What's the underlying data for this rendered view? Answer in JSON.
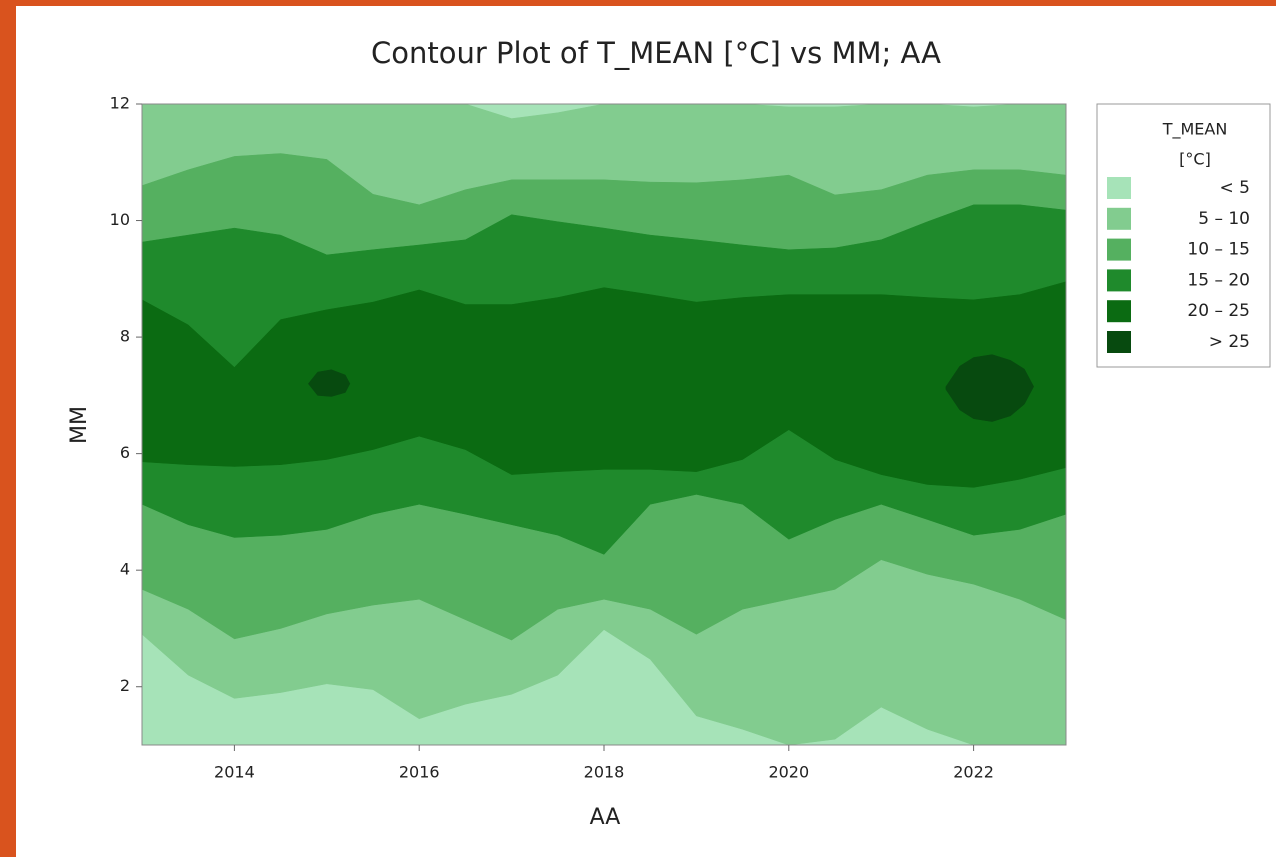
{
  "chart_data": {
    "type": "contour",
    "title": "Contour Plot of T_MEAN [°C] vs MM; AA",
    "x_label": "AA",
    "y_label": "MM",
    "xlim": [
      2013,
      2023
    ],
    "xticks": [
      2014,
      2016,
      2018,
      2020,
      2022
    ],
    "ylim": [
      1,
      12
    ],
    "yticks": [
      2,
      4,
      6,
      8,
      10,
      12
    ],
    "legend_title": [
      "T_MEAN",
      "[°C]"
    ],
    "series": [
      {
        "name": "< 5",
        "color": "#a6e3b8",
        "regions": [
          {
            "x": [
              2013,
              2023
            ],
            "lower": [
              1,
              1
            ],
            "upper": [
              12,
              12
            ]
          }
        ]
      },
      {
        "name": "5 – 10",
        "color": "#82cc8f",
        "regions": [
          {
            "x": [
              2013,
              2013.5,
              2014,
              2014.5,
              2015,
              2015.5,
              2016,
              2016.5,
              2017,
              2017.5,
              2018,
              2018.5,
              2019,
              2019.5,
              2020,
              2020.5,
              2021,
              2021.5,
              2022,
              2022.5,
              2023
            ],
            "lower": [
              2.9,
              2.2,
              1.8,
              1.9,
              2.05,
              1.95,
              1.45,
              1.7,
              1.87,
              2.2,
              2.98,
              2.47,
              1.5,
              1.27,
              1,
              1.1,
              1.65,
              1.27,
              1,
              1,
              1
            ],
            "upper": [
              12,
              12,
              12,
              12,
              12,
              12,
              12,
              12,
              11.75,
              11.85,
              12,
              12,
              12,
              12,
              11.95,
              11.95,
              12,
              12,
              11.95,
              12,
              12
            ]
          }
        ]
      },
      {
        "name": "10 – 15",
        "color": "#55b060",
        "regions": [
          {
            "x": [
              2013,
              2013.5,
              2014,
              2014.5,
              2015,
              2015.5,
              2016,
              2016.5,
              2017,
              2017.5,
              2018,
              2018.5,
              2019,
              2019.5,
              2020,
              2020.5,
              2021,
              2021.5,
              2022,
              2022.5,
              2023
            ],
            "lower": [
              3.67,
              3.33,
              2.82,
              3.0,
              3.25,
              3.4,
              3.5,
              3.15,
              2.8,
              3.33,
              3.5,
              3.33,
              2.9,
              3.33,
              3.5,
              3.67,
              4.18,
              3.93,
              3.76,
              3.5,
              3.15
            ],
            "upper": [
              10.6,
              10.87,
              11.1,
              11.15,
              11.05,
              10.45,
              10.27,
              10.53,
              10.7,
              10.7,
              10.7,
              10.66,
              10.65,
              10.7,
              10.78,
              10.44,
              10.53,
              10.78,
              10.87,
              10.87,
              10.78
            ]
          }
        ]
      },
      {
        "name": "15 – 20",
        "color": "#1f8a2c",
        "regions": [
          {
            "x": [
              2013,
              2013.5,
              2014,
              2014.5,
              2015,
              2015.5,
              2016,
              2016.5,
              2017,
              2017.5,
              2018,
              2018.5,
              2019,
              2019.5,
              2020,
              2020.5,
              2021,
              2021.5,
              2022,
              2022.5,
              2023
            ],
            "lower": [
              5.13,
              4.78,
              4.56,
              4.6,
              4.7,
              4.96,
              5.13,
              4.96,
              4.78,
              4.6,
              4.27,
              5.13,
              5.3,
              5.13,
              4.53,
              4.87,
              5.13,
              4.87,
              4.6,
              4.7,
              4.96
            ],
            "upper": [
              9.63,
              9.75,
              9.87,
              9.75,
              9.41,
              9.5,
              9.58,
              9.67,
              10.1,
              9.98,
              9.87,
              9.75,
              9.67,
              9.58,
              9.5,
              9.53,
              9.67,
              9.98,
              10.27,
              10.27,
              10.18
            ]
          }
        ]
      },
      {
        "name": "20 – 25",
        "color": "#0b6b12",
        "regions": [
          {
            "x": [
              2013,
              2013.5,
              2014,
              2014.5,
              2015,
              2015.5,
              2016,
              2016.5,
              2017,
              2017.5,
              2018,
              2018.5,
              2019,
              2019.5,
              2020,
              2020.5,
              2021,
              2021.5,
              2022,
              2022.5,
              2023
            ],
            "lower": [
              5.86,
              5.81,
              5.78,
              5.81,
              5.9,
              6.07,
              6.3,
              6.07,
              5.64,
              5.69,
              5.73,
              5.73,
              5.69,
              5.9,
              6.41,
              5.9,
              5.64,
              5.47,
              5.42,
              5.56,
              5.76
            ],
            "upper": [
              8.64,
              8.21,
              7.48,
              8.3,
              8.47,
              8.6,
              8.81,
              8.56,
              8.56,
              8.68,
              8.85,
              8.73,
              8.6,
              8.68,
              8.73,
              8.73,
              8.73,
              8.68,
              8.64,
              8.73,
              8.95
            ]
          }
        ]
      },
      {
        "name": "> 25",
        "color": "#074a0f",
        "regions": [
          {
            "x": [
              2014.8,
              2014.9,
              2015.05,
              2015.2,
              2015.25
            ],
            "lower": [
              7.2,
              7.0,
              6.98,
              7.05,
              7.2
            ],
            "upper": [
              7.2,
              7.4,
              7.44,
              7.35,
              7.2
            ]
          },
          {
            "x": [
              2021.7,
              2021.85,
              2022.0,
              2022.2,
              2022.4,
              2022.55,
              2022.65
            ],
            "lower": [
              7.1,
              6.75,
              6.6,
              6.55,
              6.65,
              6.85,
              7.15
            ],
            "upper": [
              7.15,
              7.5,
              7.65,
              7.7,
              7.6,
              7.45,
              7.15
            ]
          }
        ]
      }
    ]
  }
}
